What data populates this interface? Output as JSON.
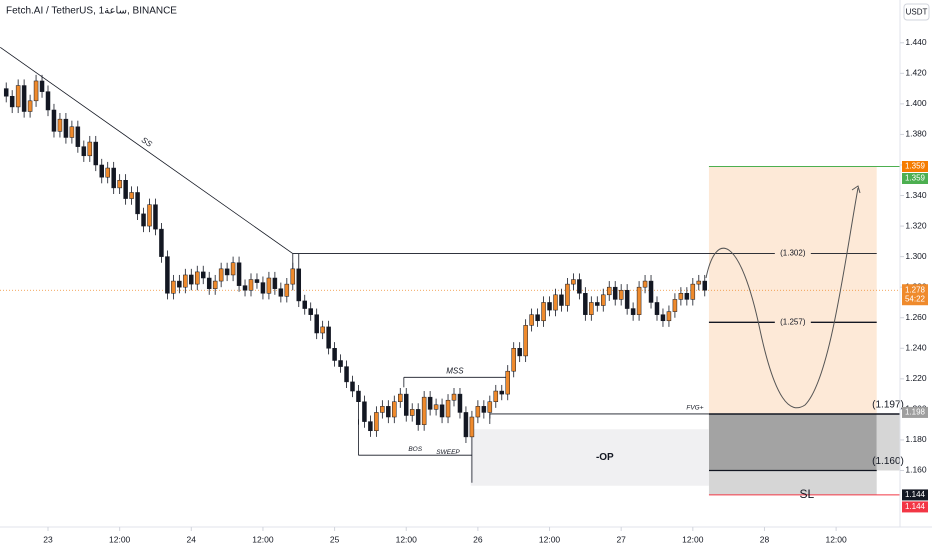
{
  "chart_data": {
    "type": "candlestick",
    "title": "Fetch.AI / TetherUS, 1ساعة, BINANCE",
    "currency": "USDT",
    "up_color": "#ef8a2c",
    "down_color": "#131722",
    "x": [
      -7,
      -6,
      -5,
      -4,
      -3,
      -2,
      -1,
      0,
      1,
      2,
      3,
      4,
      5,
      6,
      7,
      8,
      9,
      10,
      11,
      12,
      13,
      14,
      15,
      16,
      17,
      18,
      19,
      20,
      21,
      22,
      23,
      24,
      25,
      26,
      27,
      28,
      29,
      30,
      31,
      32,
      33,
      34,
      35,
      36,
      37,
      38,
      39,
      40,
      41,
      42,
      43,
      44,
      45,
      46,
      47,
      48,
      49,
      50,
      51,
      52,
      53,
      54,
      55,
      56,
      57,
      58,
      59,
      60,
      61,
      62,
      63,
      64,
      65,
      66,
      67,
      68,
      69,
      70,
      71,
      72,
      73,
      74,
      75,
      76,
      77,
      78,
      79,
      80,
      81,
      82,
      83,
      84,
      85,
      86,
      87,
      88,
      89,
      90,
      91,
      92,
      93,
      94,
      95,
      96,
      97,
      98,
      99,
      100,
      101,
      102,
      103,
      104,
      105,
      106,
      107,
      108,
      109,
      110
    ],
    "open": [
      1.41,
      1.405,
      1.398,
      1.412,
      1.395,
      1.402,
      1.415,
      1.408,
      1.396,
      1.382,
      1.39,
      1.378,
      1.385,
      1.372,
      1.366,
      1.375,
      1.36,
      1.352,
      1.358,
      1.345,
      1.35,
      1.338,
      1.342,
      1.328,
      1.32,
      1.334,
      1.318,
      1.3,
      1.276,
      1.284,
      1.28,
      1.288,
      1.282,
      1.29,
      1.286,
      1.279,
      1.284,
      1.292,
      1.288,
      1.296,
      1.281,
      1.278,
      1.285,
      1.283,
      1.276,
      1.286,
      1.279,
      1.274,
      1.282,
      1.292,
      1.271,
      1.266,
      1.262,
      1.25,
      1.254,
      1.24,
      1.232,
      1.228,
      1.218,
      1.212,
      1.205,
      1.192,
      1.186,
      1.198,
      1.202,
      1.195,
      1.205,
      1.21,
      1.196,
      1.2,
      1.19,
      1.208,
      1.2,
      1.203,
      1.195,
      1.206,
      1.21,
      1.198,
      1.182,
      1.195,
      1.202,
      1.198,
      1.205,
      1.212,
      1.21,
      1.225,
      1.24,
      1.235,
      1.255,
      1.262,
      1.258,
      1.27,
      1.265,
      1.275,
      1.268,
      1.282,
      1.285,
      1.276,
      1.262,
      1.27,
      1.268,
      1.275,
      1.28,
      1.272,
      1.278,
      1.266,
      1.262,
      1.28,
      1.284,
      1.27,
      1.262,
      1.258,
      1.264,
      1.272,
      1.276,
      1.272,
      1.282,
      1.284
    ],
    "high": [
      1.414,
      1.409,
      1.416,
      1.416,
      1.406,
      1.419,
      1.419,
      1.412,
      1.4,
      1.394,
      1.394,
      1.389,
      1.389,
      1.376,
      1.379,
      1.379,
      1.364,
      1.362,
      1.362,
      1.354,
      1.354,
      1.346,
      1.346,
      1.332,
      1.338,
      1.338,
      1.322,
      1.304,
      1.288,
      1.288,
      1.292,
      1.292,
      1.294,
      1.294,
      1.29,
      1.288,
      1.296,
      1.296,
      1.3,
      1.3,
      1.285,
      1.289,
      1.289,
      1.287,
      1.29,
      1.29,
      1.283,
      1.286,
      1.296,
      1.302,
      1.275,
      1.27,
      1.266,
      1.258,
      1.258,
      1.244,
      1.236,
      1.232,
      1.222,
      1.216,
      1.209,
      1.196,
      1.202,
      1.206,
      1.206,
      1.209,
      1.214,
      1.214,
      1.204,
      1.204,
      1.212,
      1.212,
      1.207,
      1.207,
      1.21,
      1.214,
      1.214,
      1.202,
      1.199,
      1.206,
      1.206,
      1.209,
      1.216,
      1.216,
      1.229,
      1.244,
      1.244,
      1.259,
      1.266,
      1.266,
      1.274,
      1.274,
      1.279,
      1.279,
      1.286,
      1.289,
      1.289,
      1.28,
      1.274,
      1.274,
      1.279,
      1.284,
      1.284,
      1.282,
      1.282,
      1.27,
      1.284,
      1.288,
      1.288,
      1.274,
      1.266,
      1.268,
      1.276,
      1.28,
      1.28,
      1.286,
      1.288,
      1.288
    ],
    "low": [
      1.401,
      1.394,
      1.394,
      1.391,
      1.391,
      1.398,
      1.404,
      1.392,
      1.378,
      1.378,
      1.374,
      1.374,
      1.368,
      1.362,
      1.362,
      1.356,
      1.348,
      1.348,
      1.341,
      1.341,
      1.334,
      1.334,
      1.324,
      1.316,
      1.316,
      1.314,
      1.296,
      1.272,
      1.272,
      1.276,
      1.276,
      1.278,
      1.278,
      1.282,
      1.275,
      1.275,
      1.28,
      1.284,
      1.284,
      1.277,
      1.274,
      1.274,
      1.279,
      1.272,
      1.272,
      1.275,
      1.27,
      1.27,
      1.278,
      1.267,
      1.262,
      1.258,
      1.246,
      1.246,
      1.236,
      1.228,
      1.224,
      1.214,
      1.208,
      1.19,
      1.188,
      1.182,
      1.182,
      1.194,
      1.191,
      1.191,
      1.201,
      1.192,
      1.192,
      1.186,
      1.186,
      1.196,
      1.196,
      1.191,
      1.191,
      1.202,
      1.194,
      1.178,
      1.152,
      1.191,
      1.194,
      1.194,
      1.201,
      1.206,
      1.206,
      1.221,
      1.231,
      1.231,
      1.251,
      1.254,
      1.254,
      1.261,
      1.261,
      1.264,
      1.264,
      1.278,
      1.272,
      1.258,
      1.258,
      1.264,
      1.264,
      1.271,
      1.268,
      1.268,
      1.262,
      1.258,
      1.258,
      1.276,
      1.266,
      1.258,
      1.254,
      1.254,
      1.26,
      1.268,
      1.268,
      1.268,
      1.278,
      1.274
    ],
    "close": [
      1.405,
      1.398,
      1.412,
      1.395,
      1.402,
      1.415,
      1.408,
      1.396,
      1.382,
      1.39,
      1.378,
      1.385,
      1.372,
      1.366,
      1.375,
      1.36,
      1.352,
      1.358,
      1.345,
      1.35,
      1.338,
      1.342,
      1.328,
      1.32,
      1.334,
      1.318,
      1.3,
      1.276,
      1.284,
      1.28,
      1.288,
      1.282,
      1.29,
      1.286,
      1.279,
      1.284,
      1.292,
      1.288,
      1.296,
      1.281,
      1.278,
      1.285,
      1.283,
      1.276,
      1.286,
      1.279,
      1.274,
      1.282,
      1.292,
      1.271,
      1.266,
      1.262,
      1.25,
      1.254,
      1.24,
      1.232,
      1.228,
      1.218,
      1.212,
      1.205,
      1.192,
      1.186,
      1.198,
      1.202,
      1.195,
      1.205,
      1.21,
      1.196,
      1.2,
      1.19,
      1.208,
      1.2,
      1.203,
      1.195,
      1.206,
      1.21,
      1.198,
      1.182,
      1.195,
      1.202,
      1.198,
      1.205,
      1.212,
      1.21,
      1.225,
      1.24,
      1.235,
      1.255,
      1.262,
      1.258,
      1.27,
      1.265,
      1.275,
      1.268,
      1.282,
      1.285,
      1.276,
      1.262,
      1.27,
      1.268,
      1.275,
      1.28,
      1.272,
      1.278,
      1.266,
      1.262,
      1.28,
      1.284,
      1.27,
      1.262,
      1.258,
      1.264,
      1.272,
      1.276,
      1.272,
      1.282,
      1.284,
      1.278
    ],
    "xlim": [
      -8.04,
      142.7
    ],
    "ylim": [
      1.123,
      1.468
    ],
    "xticks": [
      {
        "value": 0,
        "label": "23"
      },
      {
        "value": 12,
        "label": "12:00"
      },
      {
        "value": 24,
        "label": "24"
      },
      {
        "value": 36,
        "label": "12:00"
      },
      {
        "value": 48,
        "label": "25"
      },
      {
        "value": 60,
        "label": "12:00"
      },
      {
        "value": 72,
        "label": "26"
      },
      {
        "value": 84,
        "label": "12:00"
      },
      {
        "value": 96,
        "label": "27"
      },
      {
        "value": 108,
        "label": "12:00"
      },
      {
        "value": 120,
        "label": "28"
      },
      {
        "value": 132,
        "label": "12:00"
      }
    ],
    "yticks": [
      {
        "value": 1.16,
        "label": "1.160"
      },
      {
        "value": 1.18,
        "label": "1.180"
      },
      {
        "value": 1.2,
        "label": "1.200"
      },
      {
        "value": 1.22,
        "label": "1.220"
      },
      {
        "value": 1.24,
        "label": "1.240"
      },
      {
        "value": 1.26,
        "label": "1.260"
      },
      {
        "value": 1.28,
        "label": "1.280"
      },
      {
        "value": 1.3,
        "label": "1.300"
      },
      {
        "value": 1.32,
        "label": "1.320"
      },
      {
        "value": 1.34,
        "label": "1.340"
      },
      {
        "value": 1.36,
        "label": "1.360"
      },
      {
        "value": 1.38,
        "label": "1.380"
      },
      {
        "value": 1.4,
        "label": "1.400"
      },
      {
        "value": 1.42,
        "label": "1.420"
      },
      {
        "value": 1.44,
        "label": "1.440"
      }
    ],
    "last_price": {
      "value": 1.278,
      "label": "1.278",
      "countdown": "54:22",
      "color": "#ef8a2c"
    },
    "price_tags": [
      {
        "value": 1.359,
        "label": "1.359",
        "color": "#f57c00"
      },
      {
        "value": 1.359,
        "label": "1.359",
        "color": "#4caf50"
      },
      {
        "value": 1.198,
        "label": "1.198",
        "color": "#9e9e9e"
      },
      {
        "value": 1.144,
        "label": "1.144",
        "color": "#131722"
      },
      {
        "value": 1.144,
        "label": "1.144",
        "color": "#f23645"
      }
    ],
    "trendline": {
      "label": "SS",
      "start": [
        -8,
        1.437
      ],
      "end": [
        41,
        1.302
      ]
    },
    "structure": [
      {
        "label": "MSS",
        "value": 1.221,
        "from": 59.6,
        "to": 76.7
      },
      {
        "label": "BOS",
        "value": 1.17,
        "from": 52,
        "to": 71
      },
      {
        "label": "FVG+",
        "value": 1.197,
        "from": 74,
        "to": 110.7
      }
    ],
    "sweep": {
      "label": "SWEEP",
      "x": 67,
      "y": 1.172
    },
    "order_block": {
      "label": "-OP",
      "from": 70.8,
      "to": 110.7,
      "low": 1.15,
      "high": 1.187
    },
    "position": {
      "from": 110.7,
      "to": 138.8,
      "target": 1.359,
      "entry": 1.197,
      "stop": 1.144,
      "entry_label": "(1.197)",
      "stop_label": "SL",
      "levels": [
        {
          "value": 1.302,
          "label": "(1.302)"
        },
        {
          "value": 1.257,
          "label": "(1.257)"
        },
        {
          "value": 1.16,
          "label": "(1.160)"
        }
      ]
    }
  }
}
